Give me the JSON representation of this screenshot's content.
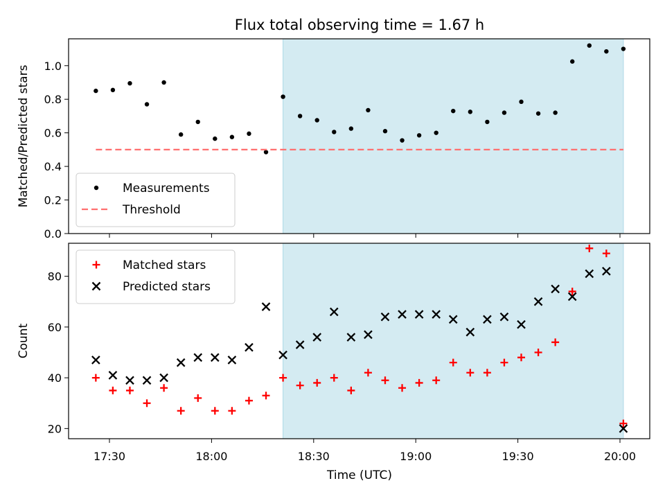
{
  "chart_data": {
    "title": "Flux total observing time = 1.67 h",
    "xlabel": "Time (UTC)",
    "x_ticks": [
      "17:30",
      "18:00",
      "18:30",
      "19:00",
      "19:30",
      "20:00"
    ],
    "shaded_region": {
      "start": "18:21",
      "end": "20:01",
      "color": "#add8e6"
    },
    "panels": [
      {
        "type": "scatter",
        "ylabel": "Matched/Predicted stars",
        "ylim": [
          0,
          1.16
        ],
        "y_ticks": [
          "0.0",
          "0.2",
          "0.4",
          "0.6",
          "0.8",
          "1.0"
        ],
        "legend_position": "lower-left",
        "series": [
          {
            "name": "Measurements",
            "marker": "dot",
            "color": "#000000",
            "x": [
              "17:26",
              "17:31",
              "17:36",
              "17:41",
              "17:46",
              "17:51",
              "17:56",
              "18:01",
              "18:06",
              "18:11",
              "18:16",
              "18:21",
              "18:26",
              "18:31",
              "18:36",
              "18:41",
              "18:46",
              "18:51",
              "18:56",
              "19:01",
              "19:06",
              "19:11",
              "19:16",
              "19:21",
              "19:26",
              "19:31",
              "19:36",
              "19:41",
              "19:46",
              "19:51",
              "19:56",
              "20:01"
            ],
            "y": [
              0.85,
              0.855,
              0.895,
              0.77,
              0.9,
              0.59,
              0.665,
              0.565,
              0.575,
              0.595,
              0.485,
              0.815,
              0.7,
              0.675,
              0.605,
              0.625,
              0.735,
              0.61,
              0.555,
              0.585,
              0.6,
              0.73,
              0.725,
              0.665,
              0.72,
              0.785,
              0.715,
              0.72,
              1.025,
              1.12,
              1.085,
              1.1
            ]
          },
          {
            "name": "Threshold",
            "marker": "dashed-line",
            "color": "#ff6f6f",
            "x": [
              "17:26",
              "20:01"
            ],
            "y": [
              0.5,
              0.5
            ]
          }
        ]
      },
      {
        "type": "scatter",
        "ylabel": "Count",
        "ylim": [
          16,
          93
        ],
        "y_ticks": [
          "20",
          "40",
          "60",
          "80"
        ],
        "legend_position": "top-left",
        "series": [
          {
            "name": "Matched stars",
            "marker": "plus",
            "color": "#ff0000",
            "x": [
              "17:26",
              "17:31",
              "17:36",
              "17:41",
              "17:46",
              "17:51",
              "17:56",
              "18:01",
              "18:06",
              "18:11",
              "18:16",
              "18:21",
              "18:26",
              "18:31",
              "18:36",
              "18:41",
              "18:46",
              "18:51",
              "18:56",
              "19:01",
              "19:06",
              "19:11",
              "19:16",
              "19:21",
              "19:26",
              "19:31",
              "19:36",
              "19:41",
              "19:46",
              "19:51",
              "19:56",
              "20:01"
            ],
            "y": [
              40,
              35,
              35,
              30,
              36,
              27,
              32,
              27,
              27,
              31,
              33,
              40,
              37,
              38,
              40,
              35,
              42,
              39,
              36,
              38,
              39,
              46,
              42,
              42,
              46,
              48,
              50,
              54,
              74,
              91,
              89,
              22
            ]
          },
          {
            "name": "Predicted stars",
            "marker": "x",
            "color": "#000000",
            "x": [
              "17:26",
              "17:31",
              "17:36",
              "17:41",
              "17:46",
              "17:51",
              "17:56",
              "18:01",
              "18:06",
              "18:11",
              "18:16",
              "18:21",
              "18:26",
              "18:31",
              "18:36",
              "18:41",
              "18:46",
              "18:51",
              "18:56",
              "19:01",
              "19:06",
              "19:11",
              "19:16",
              "19:21",
              "19:26",
              "19:31",
              "19:36",
              "19:41",
              "19:46",
              "19:51",
              "19:56",
              "20:01"
            ],
            "y": [
              47,
              41,
              39,
              39,
              40,
              46,
              48,
              48,
              47,
              52,
              68,
              49,
              53,
              56,
              66,
              56,
              57,
              64,
              65,
              65,
              65,
              63,
              58,
              63,
              64,
              61,
              70,
              75,
              72,
              81,
              82,
              20
            ]
          }
        ]
      }
    ]
  }
}
